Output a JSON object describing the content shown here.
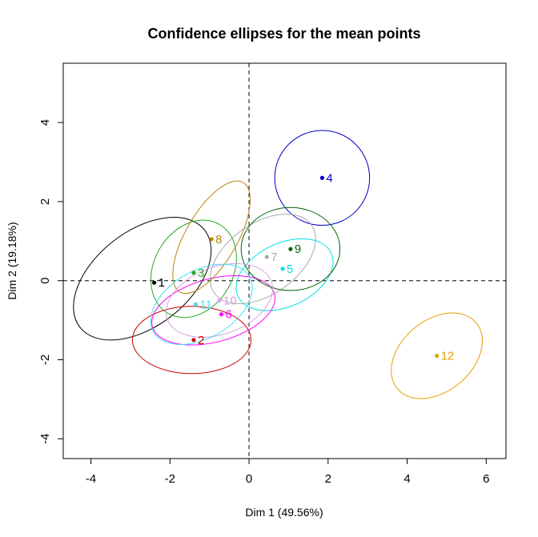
{
  "chart_data": {
    "type": "scatter",
    "title": "Confidence ellipses for the mean points",
    "xlabel": "Dim 1 (49.56%)",
    "ylabel": "Dim 2 (19.18%)",
    "xlim": [
      -4.7,
      6.5
    ],
    "ylim": [
      -4.5,
      5.5
    ],
    "x_ticks": [
      -4,
      -2,
      0,
      2,
      4,
      6
    ],
    "y_ticks": [
      -4,
      -2,
      0,
      2,
      4
    ],
    "x_tick_labels": [
      "-4",
      "-2",
      "0",
      "2",
      "4",
      "6"
    ],
    "y_tick_labels": [
      "-4",
      "-2",
      "0",
      "2",
      "4"
    ],
    "reference_lines": {
      "x": 0,
      "y": 0,
      "style": "dashed"
    },
    "points": [
      {
        "label": "1",
        "x": -2.4,
        "y": -0.05,
        "color": "#000000",
        "ellipse": {
          "cx": -2.7,
          "cy": 0.05,
          "rx": 2.0,
          "ry": 1.2,
          "angle": -38
        }
      },
      {
        "label": "2",
        "x": -1.4,
        "y": -1.5,
        "color": "#cc0000",
        "ellipse": {
          "cx": -1.45,
          "cy": -1.5,
          "rx": 1.5,
          "ry": 0.85,
          "angle": 0
        }
      },
      {
        "label": "3",
        "x": -1.4,
        "y": 0.2,
        "color": "#22aa22",
        "ellipse": {
          "cx": -1.4,
          "cy": 0.3,
          "rx": 1.3,
          "ry": 1.0,
          "angle": -60
        }
      },
      {
        "label": "4",
        "x": 1.85,
        "y": 2.6,
        "color": "#0000cc",
        "ellipse": {
          "cx": 1.85,
          "cy": 2.6,
          "rx": 1.2,
          "ry": 1.2,
          "angle": 0
        }
      },
      {
        "label": "5",
        "x": 0.85,
        "y": 0.3,
        "color": "#00e0e0",
        "ellipse": {
          "cx": 0.9,
          "cy": 0.15,
          "rx": 1.3,
          "ry": 0.8,
          "angle": -25
        }
      },
      {
        "label": "6",
        "x": -0.7,
        "y": -0.85,
        "color": "#ff00ff",
        "ellipse": {
          "cx": -0.9,
          "cy": -0.75,
          "rx": 1.6,
          "ry": 0.8,
          "angle": -15
        }
      },
      {
        "label": "7",
        "x": 0.45,
        "y": 0.6,
        "color": "#aaaaaa",
        "ellipse": {
          "cx": 0.35,
          "cy": 0.55,
          "rx": 1.5,
          "ry": 0.9,
          "angle": -35
        }
      },
      {
        "label": "8",
        "x": -0.95,
        "y": 1.05,
        "color": "#b8860b",
        "ellipse": {
          "cx": -0.95,
          "cy": 1.1,
          "rx": 1.6,
          "ry": 0.65,
          "angle": -60
        }
      },
      {
        "label": "9",
        "x": 1.05,
        "y": 0.8,
        "color": "#006400",
        "ellipse": {
          "cx": 1.05,
          "cy": 0.8,
          "rx": 1.25,
          "ry": 1.05,
          "angle": 0
        }
      },
      {
        "label": "10",
        "x": -0.75,
        "y": -0.5,
        "color": "#d8a0e0",
        "ellipse": {
          "cx": -0.75,
          "cy": -0.5,
          "rx": 1.4,
          "ry": 0.85,
          "angle": -20
        }
      },
      {
        "label": "11",
        "x": -1.35,
        "y": -0.6,
        "color": "#40e0f0",
        "ellipse": {
          "cx": -1.2,
          "cy": -0.6,
          "rx": 1.4,
          "ry": 0.85,
          "angle": -30
        }
      },
      {
        "label": "12",
        "x": 4.75,
        "y": -1.9,
        "color": "#e8a000",
        "ellipse": {
          "cx": 4.75,
          "cy": -1.9,
          "rx": 1.3,
          "ry": 0.9,
          "angle": -40
        }
      }
    ]
  }
}
